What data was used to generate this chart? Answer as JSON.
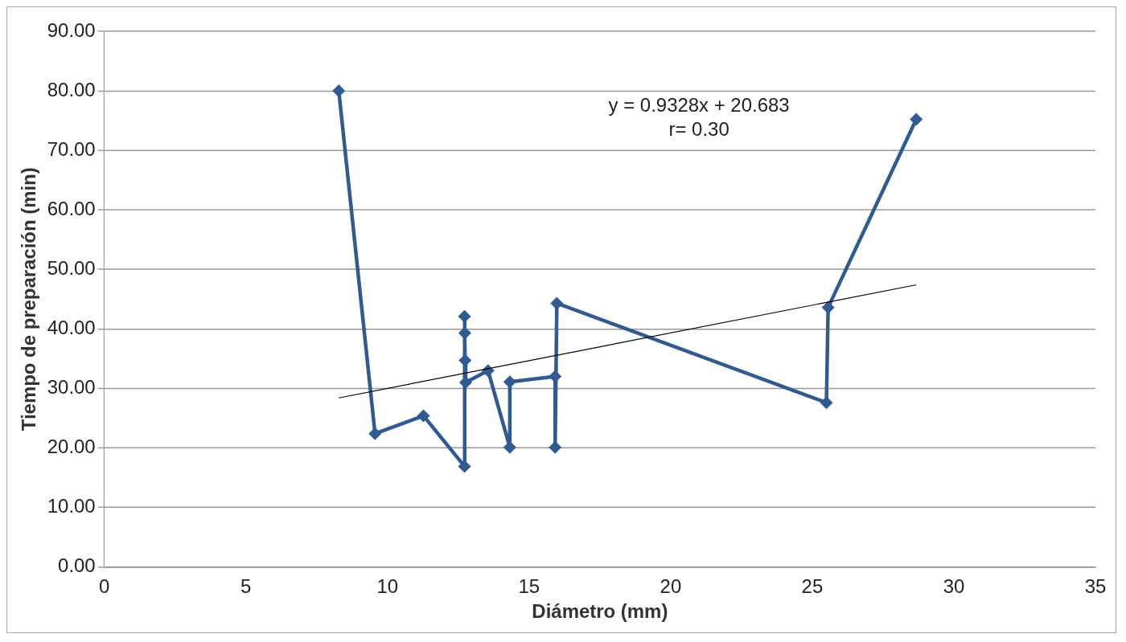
{
  "chart_data": {
    "type": "line",
    "xlabel": "Diámetro (mm)",
    "ylabel": "Tiempo de preparación (min)",
    "series": [
      {
        "type": "line",
        "color": "#2f5a92",
        "marker": "diamond",
        "x": [
          8.28,
          9.56,
          11.27,
          12.72,
          12.72,
          12.73,
          12.74,
          12.76,
          13.55,
          14.32,
          14.32,
          15.92,
          15.92,
          15.98,
          25.5,
          25.56,
          28.67
        ],
        "values": [
          80.0,
          22.4,
          25.4,
          16.9,
          42.1,
          39.3,
          34.7,
          31.0,
          33.0,
          20.1,
          31.1,
          32.0,
          20.1,
          44.3,
          27.6,
          43.6,
          75.2
        ]
      },
      {
        "type": "line",
        "color": "#000000",
        "marker": "none",
        "x": [
          8.28,
          28.67
        ],
        "values": [
          28.4,
          47.4
        ]
      }
    ],
    "annotations": [
      "y = 0.9328x + 20.683",
      "r= 0.30"
    ],
    "xlim": [
      0,
      35
    ],
    "xticks": [
      0,
      5,
      10,
      15,
      20,
      25,
      30,
      35
    ],
    "ylim": [
      0,
      90
    ],
    "yticks": [
      {
        "value": 0,
        "label": "0.00"
      },
      {
        "value": 10,
        "label": "10.00"
      },
      {
        "value": 20,
        "label": "20.00"
      },
      {
        "value": 30,
        "label": "30.00"
      },
      {
        "value": 40,
        "label": "40.00"
      },
      {
        "value": 50,
        "label": "50.00"
      },
      {
        "value": 60,
        "label": "60.00"
      },
      {
        "value": 70,
        "label": "70.00"
      },
      {
        "value": 80,
        "label": "80.00"
      },
      {
        "value": 90,
        "label": "90.00"
      }
    ],
    "grid": "y",
    "legend": false
  }
}
